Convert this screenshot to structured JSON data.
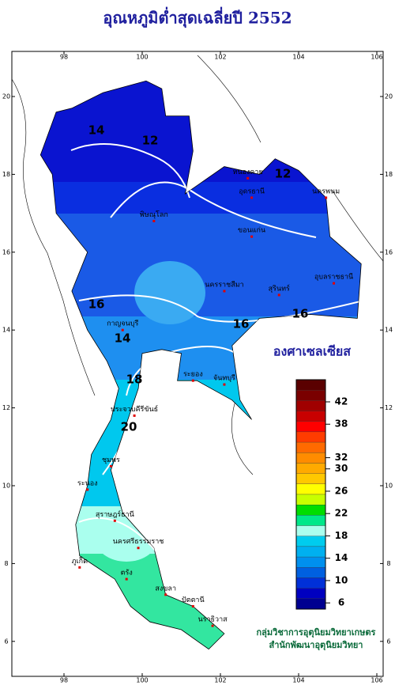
{
  "title": "อุณหภูมิต่ำสุดเฉลี่ยปี 2552",
  "map": {
    "lon_ticks": [
      98,
      100,
      102,
      104,
      106
    ],
    "lat_ticks": [
      6,
      8,
      10,
      12,
      14,
      16,
      18,
      20
    ],
    "contour_labels": [
      14,
      12,
      12,
      16,
      14,
      16,
      16,
      18,
      20
    ],
    "places": [
      "หนองคาย",
      "อุดรธานี",
      "นครพนม",
      "พิษณุโลก",
      "ขอนแก่น",
      "นครราชสีมา",
      "อุบลราชธานี",
      "สุรินทร์",
      "กาญจนบุรี",
      "ระยอง",
      "จันทบุรี",
      "ประจวบคีรีขันธ์",
      "ชุมพร",
      "ระนอง",
      "สุราษฎร์ธานี",
      "นครศรีธรรมราช",
      "ภูเก็ต",
      "ตรัง",
      "สงขลา",
      "ปัตตานี",
      "นราธิวาส"
    ]
  },
  "legend": {
    "title": "องศาเซลเซียส",
    "colors": [
      "#5a0000",
      "#7a0000",
      "#a00000",
      "#c80000",
      "#ff0000",
      "#ff3c00",
      "#ff6a00",
      "#ff8c00",
      "#ffaa00",
      "#ffc800",
      "#ffff00",
      "#c8ff00",
      "#00dd00",
      "#00e88a",
      "#aaffee",
      "#00ccee",
      "#00b0f0",
      "#0090ee",
      "#0060e0",
      "#0030d8",
      "#0000c0",
      "#000090"
    ],
    "labels": [
      42,
      38,
      32,
      30,
      26,
      22,
      18,
      14,
      10,
      6
    ]
  },
  "credits": [
    "กลุ่มวิชาการอุตุนิยมวิทยาเกษตร",
    "สำนักพัฒนาอุตุนิยมวิทยา"
  ]
}
